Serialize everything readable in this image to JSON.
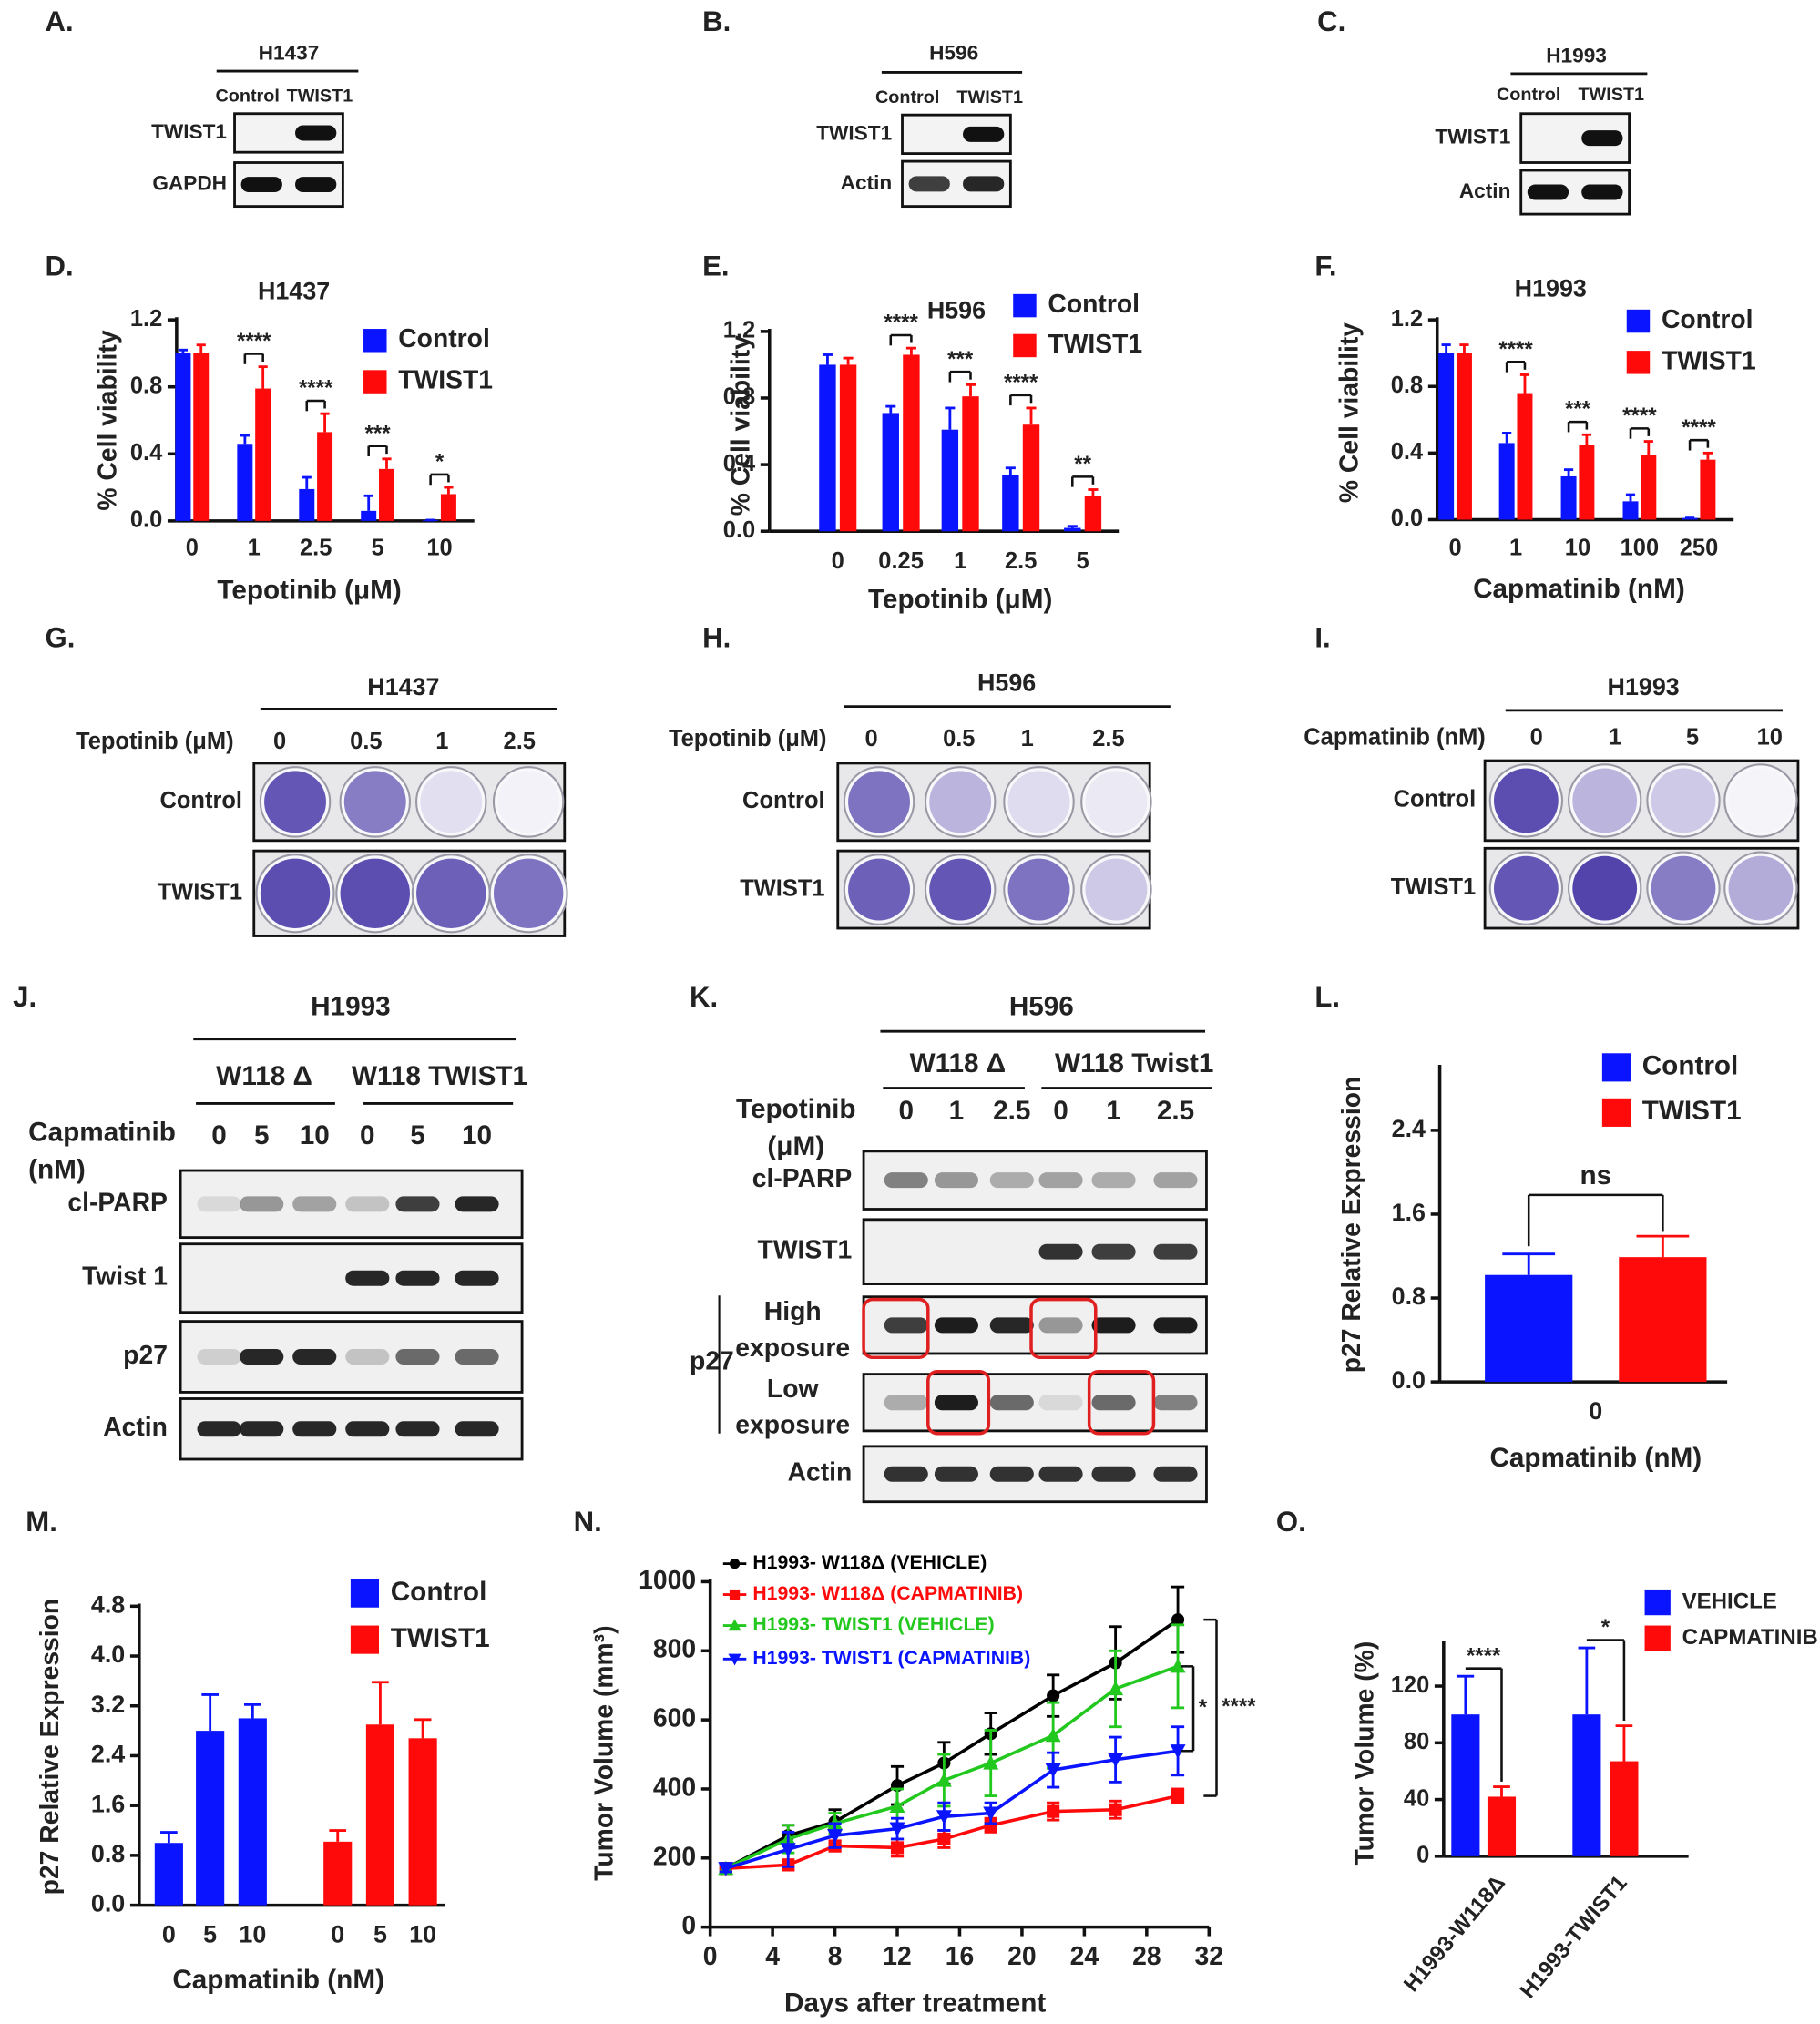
{
  "figure": {
    "blots": [
      {
        "label": "A.",
        "cell_line": "H1437",
        "lanes": [
          "Control",
          "TWIST1"
        ],
        "rows": [
          "TWIST1",
          "GAPDH"
        ]
      },
      {
        "label": "B.",
        "cell_line": "H596",
        "lanes": [
          "Control",
          "TWIST1"
        ],
        "rows": [
          "TWIST1",
          "Actin"
        ]
      },
      {
        "label": "C.",
        "cell_line": "H1993",
        "lanes": [
          "Control",
          "TWIST1"
        ],
        "rows": [
          "TWIST1",
          "Actin"
        ]
      }
    ],
    "plates": [
      {
        "label": "G.",
        "cell_line": "H1437",
        "treatment": "Tepotinib (μM)",
        "doses": [
          "0",
          "0.5",
          "1",
          "2.5"
        ],
        "rows": [
          "Control",
          "TWIST1"
        ]
      },
      {
        "label": "H.",
        "cell_line": "H596",
        "treatment": "Tepotinib (μM)",
        "doses": [
          "0",
          "0.5",
          "1",
          "2.5"
        ],
        "rows": [
          "Control",
          "TWIST1"
        ]
      },
      {
        "label": "I.",
        "cell_line": "H1993",
        "treatment": "Capmatinib (nM)",
        "doses": [
          "0",
          "1",
          "5",
          "10"
        ],
        "rows": [
          "Control",
          "TWIST1"
        ]
      }
    ],
    "treatment_blots": [
      {
        "label": "J.",
        "cell_line": "H1993",
        "groups": [
          "W118 Δ",
          "W118 TWIST1"
        ],
        "treatment": "Capmatinib (nM)",
        "doses": [
          "0",
          "5",
          "10",
          "0",
          "5",
          "10"
        ],
        "rows": [
          "cl-PARP",
          "Twist 1",
          "p27",
          "Actin"
        ]
      },
      {
        "label": "K.",
        "cell_line": "H596",
        "groups": [
          "W118 Δ",
          "W118 Twist1"
        ],
        "treatment": "Tepotinib (μM)",
        "doses": [
          "0",
          "1",
          "2.5",
          "0",
          "1",
          "2.5"
        ],
        "rows": [
          "cl-PARP",
          "TWIST1",
          "High exposure",
          "Low exposure",
          "Actin"
        ],
        "row_group": "p27"
      }
    ]
  },
  "chart_data": [
    {
      "type": "bar",
      "label": "D.",
      "title": "H1437",
      "xlabel": "Tepotinib (μM)",
      "ylabel": "% Cell viability",
      "categories": [
        "0",
        "1",
        "2.5",
        "5",
        "10"
      ],
      "series": [
        {
          "name": "Control",
          "color": "#0a14ff",
          "values": [
            1.0,
            0.46,
            0.19,
            0.06,
            0.005
          ],
          "errors": [
            0.02,
            0.05,
            0.07,
            0.09,
            0.0
          ]
        },
        {
          "name": "TWIST1",
          "color": "#ff0a0a",
          "values": [
            1.0,
            0.79,
            0.53,
            0.31,
            0.16
          ],
          "errors": [
            0.05,
            0.13,
            0.11,
            0.06,
            0.04
          ]
        }
      ],
      "significance": [
        null,
        "****",
        "****",
        "***",
        "*"
      ],
      "ylim": [
        0,
        1.2
      ],
      "yticks": [
        {
          "value": 0,
          "label": "0.0"
        },
        0.4,
        0.8,
        1.2
      ]
    },
    {
      "type": "bar",
      "label": "E.",
      "title": "H596",
      "xlabel": "Tepotinib (μM)",
      "ylabel": "% Cell viability",
      "categories": [
        "0",
        "0.25",
        "1",
        "2.5",
        "5"
      ],
      "series": [
        {
          "name": "Control",
          "color": "#0a14ff",
          "values": [
            1.0,
            0.71,
            0.61,
            0.34,
            0.02
          ],
          "errors": [
            0.06,
            0.04,
            0.13,
            0.04,
            0.01
          ]
        },
        {
          "name": "TWIST1",
          "color": "#ff0a0a",
          "values": [
            1.0,
            1.06,
            0.81,
            0.64,
            0.21
          ],
          "errors": [
            0.04,
            0.04,
            0.07,
            0.1,
            0.04
          ]
        }
      ],
      "significance": [
        null,
        "****",
        "***",
        "****",
        "**"
      ],
      "ylim": [
        0,
        1.2
      ],
      "yticks": [
        {
          "value": 0,
          "label": "0.0"
        },
        0.4,
        0.8,
        1.2
      ]
    },
    {
      "type": "bar",
      "label": "F.",
      "title": "H1993",
      "xlabel": "Capmatinib (nM)",
      "ylabel": "% Cell viability",
      "categories": [
        "0",
        "1",
        "10",
        "100",
        "250"
      ],
      "series": [
        {
          "name": "Control",
          "color": "#0a14ff",
          "values": [
            1.0,
            0.46,
            0.26,
            0.11,
            0.01
          ],
          "errors": [
            0.05,
            0.06,
            0.04,
            0.04,
            0.0
          ]
        },
        {
          "name": "TWIST1",
          "color": "#ff0a0a",
          "values": [
            1.0,
            0.76,
            0.45,
            0.39,
            0.36
          ],
          "errors": [
            0.05,
            0.11,
            0.06,
            0.08,
            0.04
          ]
        }
      ],
      "significance": [
        null,
        "****",
        "***",
        "****",
        "****"
      ],
      "ylim": [
        0,
        1.2
      ],
      "yticks": [
        {
          "value": 0,
          "label": "0.0"
        },
        0.4,
        0.8,
        1.2
      ]
    },
    {
      "type": "bar",
      "label": "L.",
      "xlabel": "Capmatinib (nM)",
      "ylabel": "p27 Relative Expression",
      "categories": [
        "0"
      ],
      "series": [
        {
          "name": "Control",
          "color": "#0a14ff",
          "values": [
            1.02
          ],
          "errors": [
            0.2
          ]
        },
        {
          "name": "TWIST1",
          "color": "#ff0a0a",
          "values": [
            1.19
          ],
          "errors": [
            0.2
          ]
        }
      ],
      "significance": [
        "ns"
      ],
      "ylim": [
        0,
        3
      ],
      "yticks": [
        {
          "value": 0,
          "label": "0.0"
        },
        0.8,
        1.6,
        2.4
      ]
    },
    {
      "type": "bar",
      "label": "M.",
      "xlabel": "Capmatinib (nM)",
      "ylabel": "p27 Relative Expression",
      "categories": [
        "0",
        "5",
        "10"
      ],
      "series": [
        {
          "name": "Control",
          "color": "#0a14ff",
          "values": [
            1.0,
            2.8,
            3.0
          ],
          "errors": [
            0.17,
            0.58,
            0.22
          ]
        },
        {
          "name": "TWIST1",
          "color": "#ff0a0a",
          "values": [
            1.02,
            2.9,
            2.68
          ],
          "errors": [
            0.18,
            0.68,
            0.3
          ]
        }
      ],
      "ylim": [
        0,
        4.8
      ],
      "yticks": [
        {
          "value": 0,
          "label": "0.0"
        },
        0.8,
        1.6,
        2.4,
        3.2,
        {
          "value": 4,
          "label": "4.0"
        },
        4.8
      ]
    },
    {
      "type": "line",
      "label": "N.",
      "xlabel": "Days after treatment",
      "ylabel": "Tumor Volume (mm³)",
      "x": [
        1,
        5,
        8,
        12,
        15,
        18,
        22,
        26,
        30
      ],
      "series": [
        {
          "name": "H1993- W118Δ (VEHICLE)",
          "color": "#000000",
          "marker": "o",
          "values": [
            170,
            265,
            305,
            410,
            475,
            560,
            670,
            765,
            890
          ],
          "errors": [
            15,
            30,
            35,
            55,
            60,
            60,
            60,
            105,
            95
          ]
        },
        {
          "name": "H1993- W118Δ (CAPMATINIB)",
          "color": "#ff0a0a",
          "marker": "s",
          "values": [
            170,
            180,
            235,
            230,
            255,
            295,
            335,
            340,
            380
          ],
          "errors": [
            10,
            15,
            15,
            25,
            25,
            20,
            25,
            25,
            20
          ]
        },
        {
          "name": "H1993- TWIST1 (VEHICLE)",
          "color": "#22c81e",
          "marker": "^",
          "values": [
            170,
            255,
            300,
            350,
            425,
            475,
            555,
            690,
            755
          ],
          "errors": [
            10,
            40,
            30,
            50,
            75,
            95,
            95,
            110,
            120
          ]
        },
        {
          "name": "H1993- TWIST1 (CAPMATINIB)",
          "color": "#0a14ff",
          "marker": "v",
          "values": [
            170,
            225,
            265,
            285,
            320,
            330,
            455,
            485,
            510
          ],
          "errors": [
            10,
            50,
            35,
            30,
            40,
            30,
            50,
            65,
            70
          ]
        }
      ],
      "annotations": [
        "*",
        "****"
      ],
      "xlim": [
        0,
        32
      ],
      "xticks": [
        0,
        4,
        8,
        12,
        16,
        20,
        24,
        28,
        32
      ],
      "ylim": [
        0,
        1000
      ],
      "yticks": [
        0,
        200,
        400,
        600,
        800,
        1000
      ]
    },
    {
      "type": "bar",
      "label": "O.",
      "ylabel": "Tumor Volume (%)",
      "categories": [
        "H1993-W118Δ",
        "H1993-TWIST1"
      ],
      "series": [
        {
          "name": "VEHICLE",
          "color": "#0a14ff",
          "values": [
            100,
            100
          ],
          "errors": [
            27,
            47
          ]
        },
        {
          "name": "CAPMATINIB",
          "color": "#ff0a0a",
          "values": [
            42,
            67
          ],
          "errors": [
            7,
            25
          ]
        }
      ],
      "significance": [
        "****",
        "*"
      ],
      "ylim": [
        0,
        150
      ],
      "yticks": [
        0,
        40,
        80,
        120
      ]
    }
  ]
}
